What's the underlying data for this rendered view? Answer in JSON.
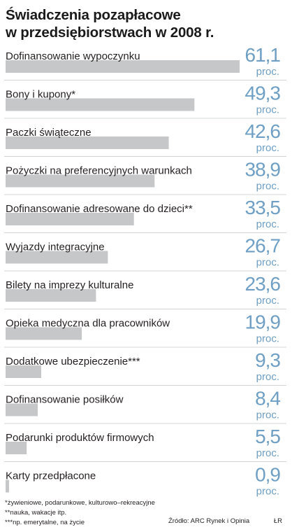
{
  "title_line1": "Świadczenia pozapłacowe",
  "title_line2": "w przedsiębiorstwach w 2008 r.",
  "chart_data": {
    "type": "bar",
    "orientation": "horizontal",
    "unit": "proc.",
    "categories": [
      "Dofinansowanie wypoczynku",
      "Bony i kupony*",
      "Paczki świąteczne",
      "Pożyczki na preferencyjnych warunkach",
      "Dofinansowanie adresowane do dzieci**",
      "Wyjazdy integracyjne",
      "Bilety na imprezy kulturalne",
      "Opieka medyczna dla pracowników",
      "Dodatkowe ubezpieczenie***",
      "Dofinansowanie posiłków",
      "Podarunki produktów firmowych",
      "Karty przedpłacone"
    ],
    "values": [
      61.1,
      49.3,
      42.6,
      38.9,
      33.5,
      26.7,
      23.6,
      19.9,
      9.3,
      8.4,
      5.5,
      0.9
    ],
    "value_labels": [
      "61,1",
      "49,3",
      "42,6",
      "38,9",
      "33,5",
      "26,7",
      "23,6",
      "19,9",
      "9,3",
      "8,4",
      "5,5",
      "0,9"
    ],
    "xlim": [
      0,
      61.1
    ],
    "grid": false,
    "legend": "none"
  },
  "colors": {
    "bar": "#c6c7c9",
    "value": "#6f9fc4",
    "divider": "#d3d4d6",
    "text": "#231f20"
  },
  "footnotes": [
    "*żywieniowe, podarunkowe, kulturowo–rekreacyjne",
    "**nauka, wakacje itp.",
    "***np. emerytalne, na życie"
  ],
  "source": "Źródło: ARC Rynek i Opinia",
  "signature": "ŁR"
}
